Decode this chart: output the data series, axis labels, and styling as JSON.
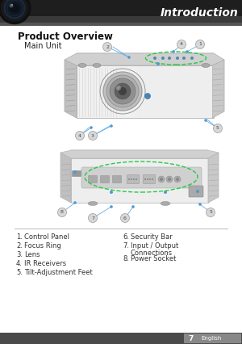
{
  "title": "Introduction",
  "section_title": "Product Overview",
  "sub_title": "Main Unit",
  "list_left_nums": [
    "1.",
    "2.",
    "3.",
    "4.",
    "5."
  ],
  "list_left_items": [
    "Control Panel",
    "Focus Ring",
    "Lens",
    "IR Receivers",
    "Tilt-Adjustment Feet"
  ],
  "list_right_nums": [
    "6.",
    "7.",
    "",
    "8."
  ],
  "list_right_items": [
    "Security Bar",
    "Input / Output",
    "Connections",
    "Power Socket"
  ],
  "page_num": "7",
  "page_lang": "English",
  "bg_color": "#ffffff",
  "header_bg_top": "#2a2a2a",
  "header_bg_bot": "#555555",
  "header_text_color": "#ffffff",
  "footer_bg": "#4a4a4a",
  "footer_text_color": "#ffffff",
  "title_font_size": 10,
  "section_font_size": 8.5,
  "sub_font_size": 7,
  "list_font_size": 6,
  "divider_color": "#bbbbbb",
  "callout_circle_bg": "#d8d8d8",
  "callout_num_color": "#444444",
  "callout_line_color": "#6aade4",
  "callout_dot_color": "#4d9ad4",
  "green_oval_color": "#22cc44",
  "label_color": "#333333",
  "proj1_body": "#e0e0e0",
  "proj1_shadow": "#c0c0c0",
  "proj1_dark": "#888888",
  "proj2_body": "#d8d8d8",
  "proj2_shadow": "#b8b8b8"
}
